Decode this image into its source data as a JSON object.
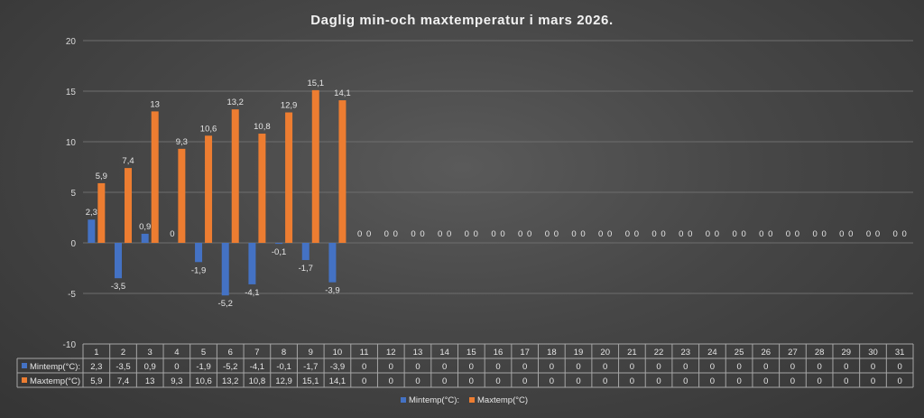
{
  "chart_data": {
    "type": "bar",
    "title": "Daglig min-och maxtemperatur i mars 2026.",
    "categories": [
      "1",
      "2",
      "3",
      "4",
      "5",
      "6",
      "7",
      "8",
      "9",
      "10",
      "11",
      "12",
      "13",
      "14",
      "15",
      "16",
      "17",
      "18",
      "19",
      "20",
      "21",
      "22",
      "23",
      "24",
      "25",
      "26",
      "27",
      "28",
      "29",
      "30",
      "31"
    ],
    "series": [
      {
        "name": "Mintemp(°C):",
        "color": "#4472c4",
        "values": [
          2.3,
          -3.5,
          0.9,
          0,
          -1.9,
          -5.2,
          -4.1,
          -0.1,
          -1.7,
          -3.9,
          0,
          0,
          0,
          0,
          0,
          0,
          0,
          0,
          0,
          0,
          0,
          0,
          0,
          0,
          0,
          0,
          0,
          0,
          0,
          0,
          0
        ],
        "labels": [
          "2,3",
          "-3,5",
          "0,9",
          "0",
          "-1,9",
          "-5,2",
          "-4,1",
          "-0,1",
          "-1,7",
          "-3,9",
          "0",
          "0",
          "0",
          "0",
          "0",
          "0",
          "0",
          "0",
          "0",
          "0",
          "0",
          "0",
          "0",
          "0",
          "0",
          "0",
          "0",
          "0",
          "0",
          "0",
          "0"
        ]
      },
      {
        "name": "Maxtemp(°C)",
        "color": "#ed7d31",
        "values": [
          5.9,
          7.4,
          13,
          9.3,
          10.6,
          13.2,
          10.8,
          12.9,
          15.1,
          14.1,
          0,
          0,
          0,
          0,
          0,
          0,
          0,
          0,
          0,
          0,
          0,
          0,
          0,
          0,
          0,
          0,
          0,
          0,
          0,
          0,
          0
        ],
        "labels": [
          "5,9",
          "7,4",
          "13",
          "9,3",
          "10,6",
          "13,2",
          "10,8",
          "12,9",
          "15,1",
          "14,1",
          "0",
          "0",
          "0",
          "0",
          "0",
          "0",
          "0",
          "0",
          "0",
          "0",
          "0",
          "0",
          "0",
          "0",
          "0",
          "0",
          "0",
          "0",
          "0",
          "0",
          "0"
        ]
      }
    ],
    "ylim": [
      -10,
      20
    ],
    "yticks": [
      "-10",
      "-5",
      "0",
      "5",
      "10",
      "15",
      "20"
    ],
    "grid": true,
    "legend": "bottom",
    "data_table": true
  }
}
